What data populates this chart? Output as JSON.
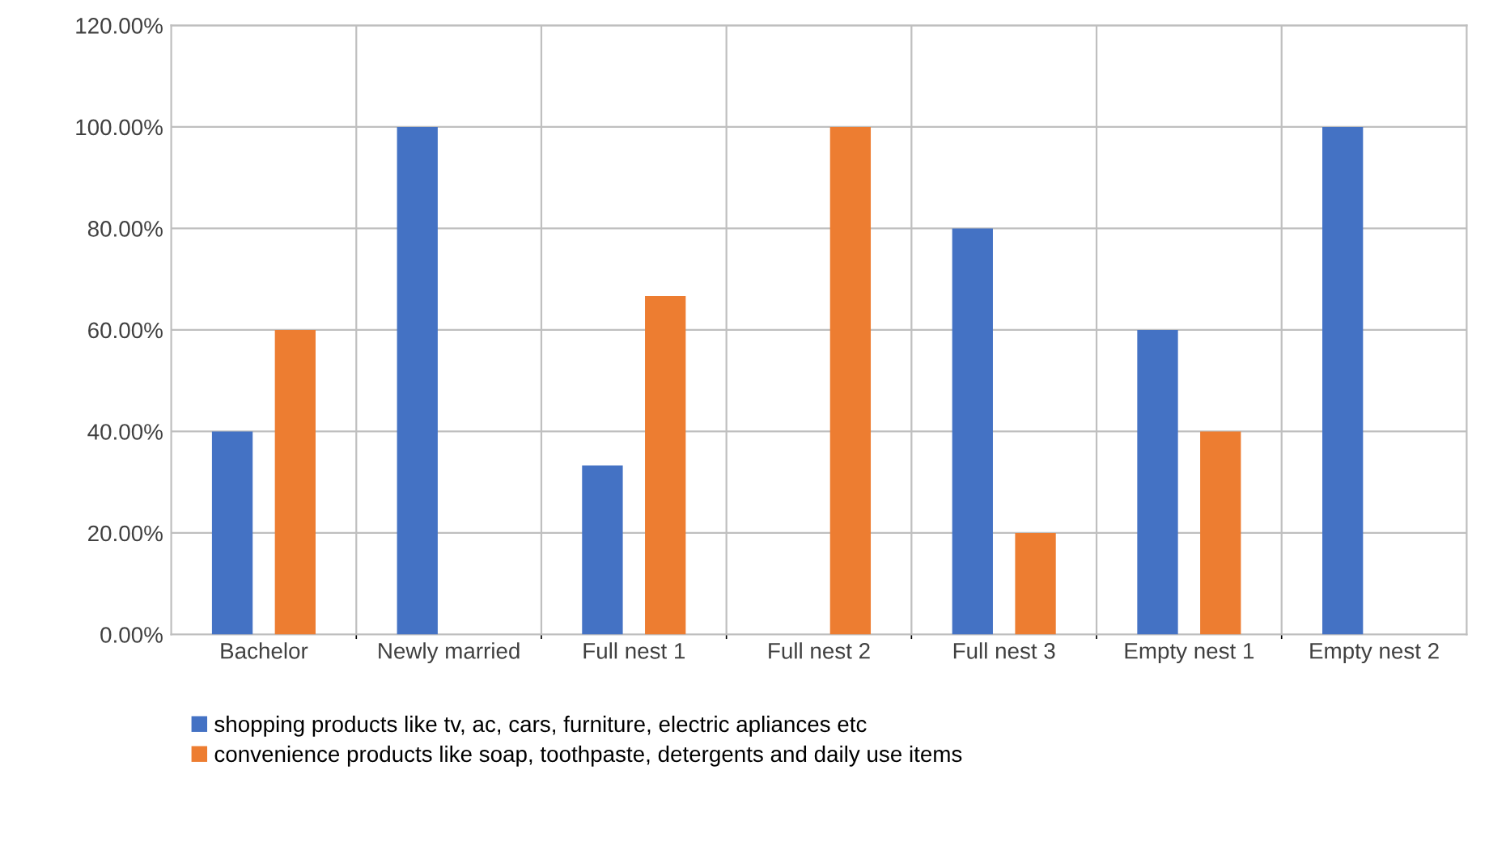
{
  "chart_data": {
    "type": "bar",
    "categories": [
      "Bachelor",
      "Newly married",
      "Full nest 1",
      "Full nest 2",
      "Full nest 3",
      "Empty nest 1",
      "Empty nest 2"
    ],
    "series": [
      {
        "name": "shopping products like tv, ac, cars, furniture, electric apliances etc",
        "color": "#4472c4",
        "values": [
          40,
          100,
          33.3,
          0,
          80,
          60,
          100
        ]
      },
      {
        "name": "convenience products like soap, toothpaste, detergents and daily use items",
        "color": "#ed7d31",
        "values": [
          60,
          0,
          66.7,
          100,
          20,
          40,
          0
        ]
      }
    ],
    "ylim": [
      0,
      120
    ],
    "yticks": [
      {
        "value": 0,
        "label": "0.00%"
      },
      {
        "value": 20,
        "label": "20.00%"
      },
      {
        "value": 40,
        "label": "40.00%"
      },
      {
        "value": 60,
        "label": "60.00%"
      },
      {
        "value": 80,
        "label": "80.00%"
      },
      {
        "value": 100,
        "label": "100.00%"
      },
      {
        "value": 120,
        "label": "120.00%"
      }
    ],
    "grid": true,
    "legend": "bottom"
  }
}
